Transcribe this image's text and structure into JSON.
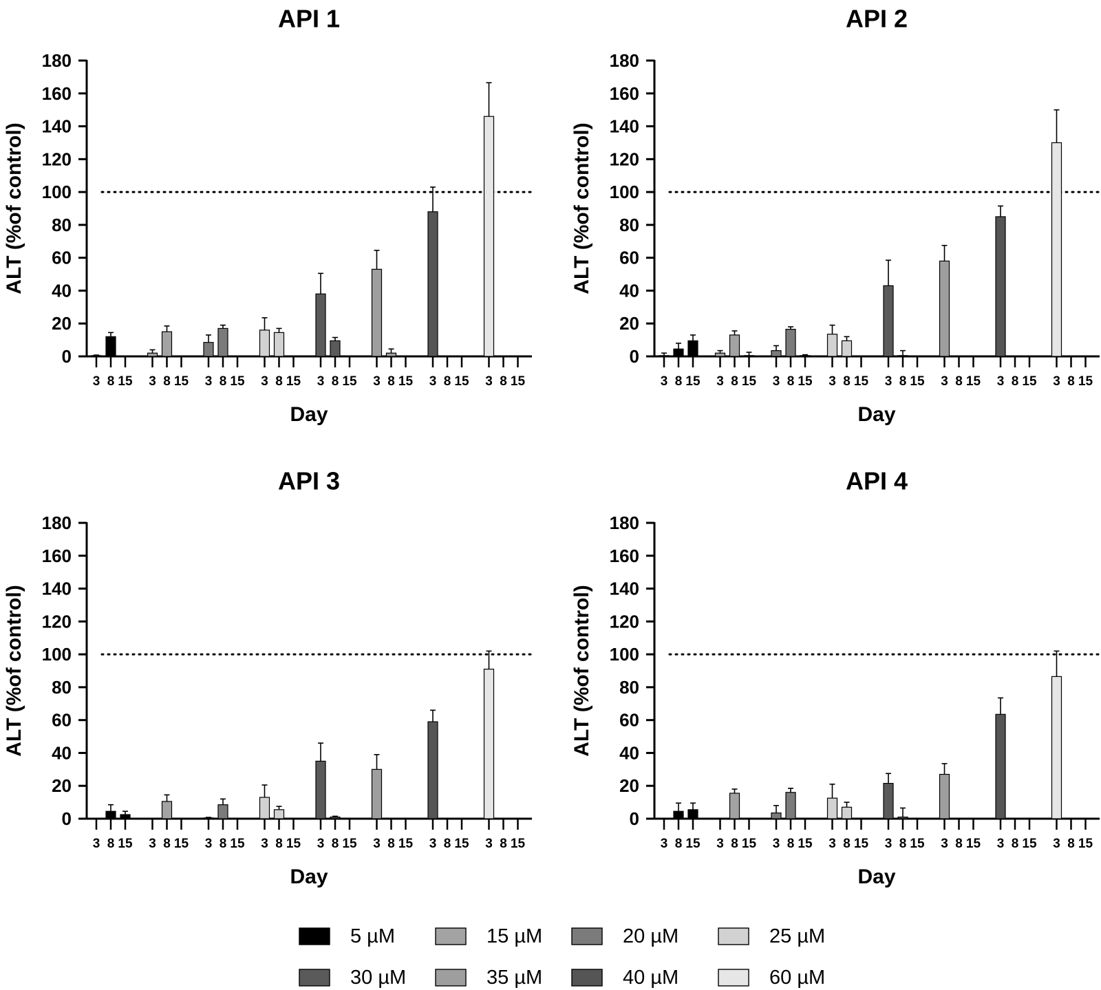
{
  "chart_data": {
    "type": "bar",
    "ylabel": "ALT (%of control)",
    "xlabel": "Day",
    "ylim": [
      0,
      180
    ],
    "yticks": [
      0,
      20,
      40,
      60,
      80,
      100,
      120,
      140,
      160,
      180
    ],
    "reference_line": {
      "y": 100,
      "style": "dotted"
    },
    "days": [
      "3",
      "8",
      "15"
    ],
    "legend": {
      "placement": "bottom",
      "columns": 4
    },
    "series": [
      {
        "name": "5 µM",
        "color": "#000000"
      },
      {
        "name": "15 µM",
        "color": "#a3a3a3"
      },
      {
        "name": "20 µM",
        "color": "#7b7b7b"
      },
      {
        "name": "25 µM",
        "color": "#d2d2d2"
      },
      {
        "name": "30 µM",
        "color": "#5a5a5a"
      },
      {
        "name": "35 µM",
        "color": "#9e9e9e"
      },
      {
        "name": "40 µM",
        "color": "#555555"
      },
      {
        "name": "60 µM",
        "color": "#e6e6e6"
      }
    ],
    "panels": [
      {
        "title": "API 1",
        "values": [
          [
            0.5,
            12,
            0
          ],
          [
            2,
            15,
            0
          ],
          [
            8.5,
            17,
            0
          ],
          [
            16,
            14.5,
            0
          ],
          [
            38,
            9.5,
            0
          ],
          [
            53,
            2,
            0
          ],
          [
            88,
            0,
            0
          ],
          [
            146,
            0,
            0
          ]
        ],
        "errors": [
          [
            0.3,
            2.5,
            0
          ],
          [
            2,
            3.5,
            0
          ],
          [
            4.5,
            2,
            0
          ],
          [
            7.5,
            2.5,
            0
          ],
          [
            12.5,
            2,
            0
          ],
          [
            11.5,
            2.5,
            0
          ],
          [
            15,
            0,
            0
          ],
          [
            20.5,
            0,
            0
          ]
        ]
      },
      {
        "title": "API 2",
        "values": [
          [
            0.5,
            4.5,
            9.5
          ],
          [
            2,
            13,
            0.5
          ],
          [
            3.5,
            16.5,
            0.5
          ],
          [
            13.5,
            9.5,
            0
          ],
          [
            43,
            0.5,
            0
          ],
          [
            58,
            0,
            0
          ],
          [
            85,
            0,
            0
          ],
          [
            130,
            0,
            0
          ]
        ],
        "errors": [
          [
            1.5,
            3.5,
            3.5
          ],
          [
            1.5,
            2.5,
            2
          ],
          [
            3,
            1.5,
            0.5
          ],
          [
            5.5,
            2.5,
            0
          ],
          [
            15.5,
            3,
            0
          ],
          [
            9.5,
            0,
            0
          ],
          [
            6.5,
            0,
            0
          ],
          [
            20,
            0,
            0
          ]
        ]
      },
      {
        "title": "API 3",
        "values": [
          [
            0,
            4.5,
            2.5
          ],
          [
            0,
            10.5,
            0
          ],
          [
            0.5,
            8.5,
            0
          ],
          [
            13,
            5.5,
            0
          ],
          [
            35,
            1,
            0
          ],
          [
            30,
            0,
            0
          ],
          [
            59,
            0,
            0
          ],
          [
            91,
            0,
            0
          ]
        ],
        "errors": [
          [
            0,
            4,
            2
          ],
          [
            0,
            4,
            0
          ],
          [
            0.3,
            3.5,
            0
          ],
          [
            7.5,
            2,
            0
          ],
          [
            11,
            0.5,
            0
          ],
          [
            9,
            0,
            0
          ],
          [
            7,
            0,
            0
          ],
          [
            11,
            0,
            0
          ]
        ]
      },
      {
        "title": "API 4",
        "values": [
          [
            0,
            4.5,
            5.5
          ],
          [
            0,
            15.5,
            0
          ],
          [
            3.5,
            16,
            0
          ],
          [
            12.5,
            7,
            0
          ],
          [
            21.5,
            1,
            0
          ],
          [
            27,
            0,
            0
          ],
          [
            63.5,
            0,
            0
          ],
          [
            86.5,
            0,
            0
          ]
        ],
        "errors": [
          [
            0,
            5,
            4
          ],
          [
            0,
            2.5,
            0
          ],
          [
            4.5,
            2.5,
            0
          ],
          [
            8.5,
            3,
            0
          ],
          [
            6,
            5.5,
            0
          ],
          [
            6.5,
            0,
            0
          ],
          [
            10,
            0,
            0
          ],
          [
            15.5,
            0,
            0
          ]
        ]
      }
    ]
  }
}
